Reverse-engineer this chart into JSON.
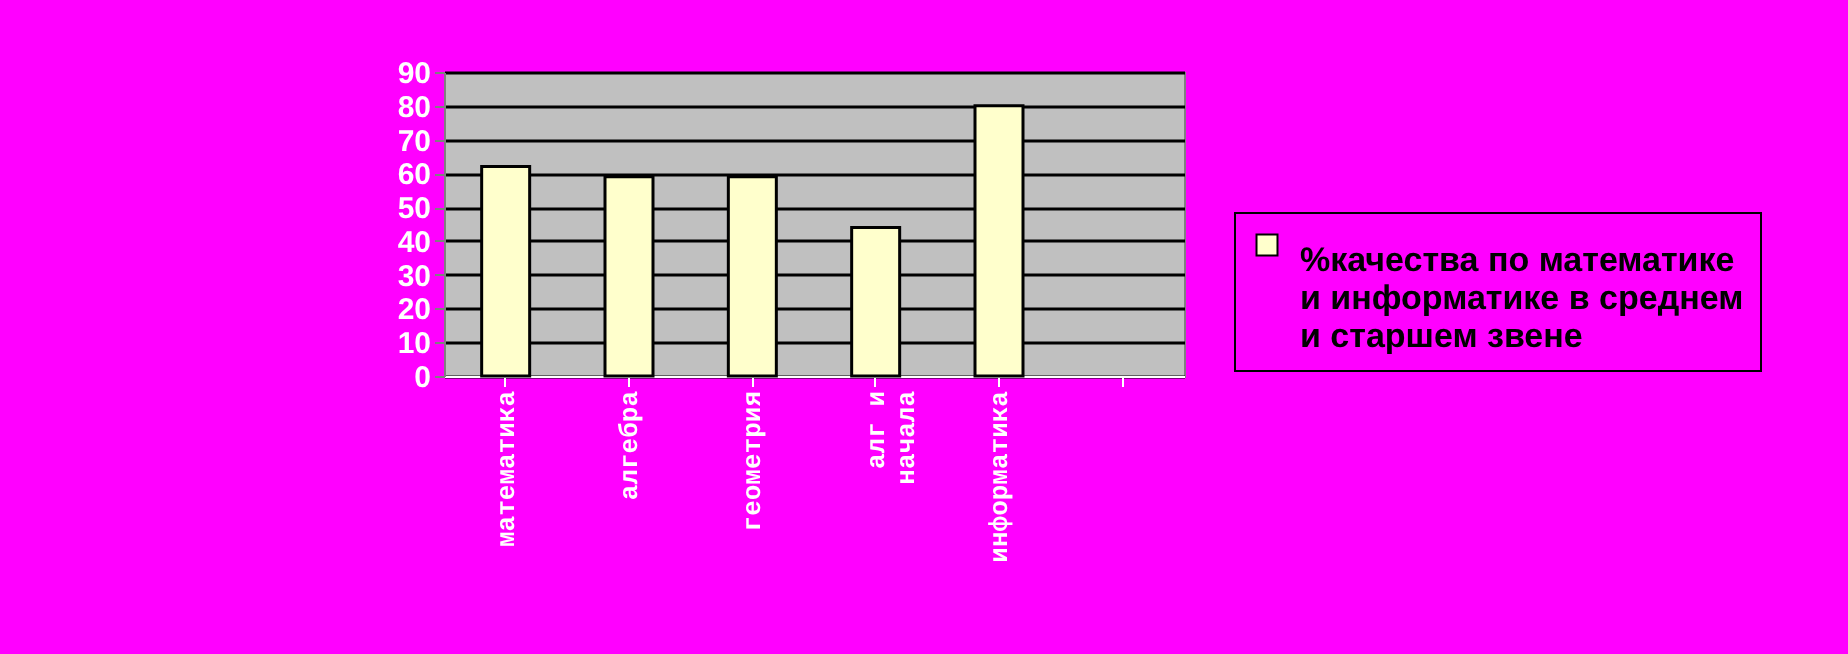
{
  "chart_data": {
    "type": "bar",
    "categories": [
      "математика",
      "алгебра",
      "геометрия",
      "алг и\nначала",
      "информатика",
      null
    ],
    "series": [
      {
        "name": "%качества по математике и информатике в среднем и старшем звене",
        "color": "#ffffcc",
        "values": [
          62,
          59,
          59,
          44,
          80,
          null
        ]
      }
    ],
    "ylim": [
      0,
      90
    ],
    "yticks": [
      0,
      10,
      20,
      30,
      40,
      50,
      60,
      70,
      80,
      90
    ],
    "grid": "y",
    "legend": "right"
  }
}
